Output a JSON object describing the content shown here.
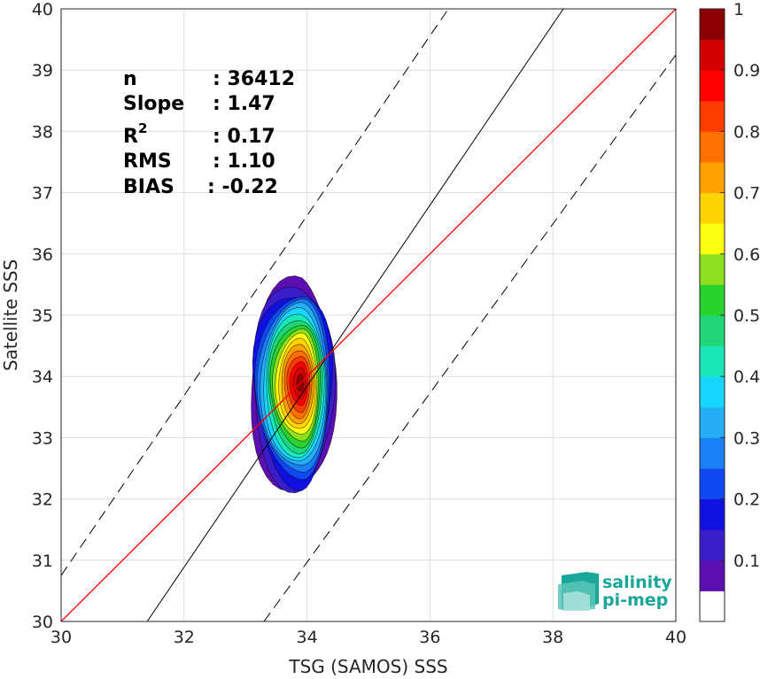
{
  "chart_data": {
    "type": "heatmap",
    "xlabel": "TSG (SAMOS) SSS",
    "ylabel": "Satellite SSS",
    "xlim": [
      30,
      40
    ],
    "ylim": [
      30,
      40
    ],
    "x_ticks": [
      "30",
      "32",
      "34",
      "36",
      "38",
      "40"
    ],
    "y_ticks": [
      "30",
      "31",
      "32",
      "33",
      "34",
      "35",
      "36",
      "37",
      "38",
      "39",
      "40"
    ],
    "grid": true,
    "stats": [
      {
        "label": "n",
        "value": ": 36412"
      },
      {
        "label": "Slope",
        "value": ": 1.47"
      },
      {
        "label": "R",
        "sup": "2",
        "value": ": 0.17"
      },
      {
        "label": "RMS",
        "value": ": 1.10"
      },
      {
        "label": "BIAS",
        "value": ": -0.22"
      }
    ],
    "lines": {
      "one_to_one": {
        "color": "#ff0000",
        "slope": 1,
        "intercept": 0
      },
      "regression": {
        "color": "#000000",
        "slope": 1.47,
        "points": [
          [
            31.4,
            30
          ],
          [
            38.17,
            40
          ]
        ]
      },
      "upper_bound": {
        "color": "#000000",
        "dash": true,
        "points": [
          [
            30,
            30.75
          ],
          [
            36.3,
            40
          ]
        ]
      },
      "lower_bound": {
        "color": "#000000",
        "dash": true,
        "points": [
          [
            33.3,
            30
          ],
          [
            40,
            39.25
          ]
        ]
      }
    },
    "density_peak": {
      "x": 33.9,
      "y": 33.9
    },
    "colorbar": {
      "ticks": [
        "0.1",
        "0.2",
        "0.3",
        "0.4",
        "0.5",
        "0.6",
        "0.7",
        "0.8",
        "0.9",
        "1"
      ],
      "levels": [
        {
          "color": "#ffffff"
        },
        {
          "color": "#5b0fb0"
        },
        {
          "color": "#3a1cc8"
        },
        {
          "color": "#1010e0"
        },
        {
          "color": "#0f48f0"
        },
        {
          "color": "#1a7ef5"
        },
        {
          "color": "#26aef5"
        },
        {
          "color": "#19d6ff"
        },
        {
          "color": "#1ae8b8"
        },
        {
          "color": "#1fd678"
        },
        {
          "color": "#2ad22e"
        },
        {
          "color": "#8ee01e"
        },
        {
          "color": "#ffff10"
        },
        {
          "color": "#ffd400"
        },
        {
          "color": "#ffa200"
        },
        {
          "color": "#ff7000"
        },
        {
          "color": "#ff3c00"
        },
        {
          "color": "#ff0000"
        },
        {
          "color": "#d40000"
        },
        {
          "color": "#8b0000"
        }
      ]
    }
  },
  "logo": {
    "line1": "salinity",
    "line2": "pi-mep"
  }
}
